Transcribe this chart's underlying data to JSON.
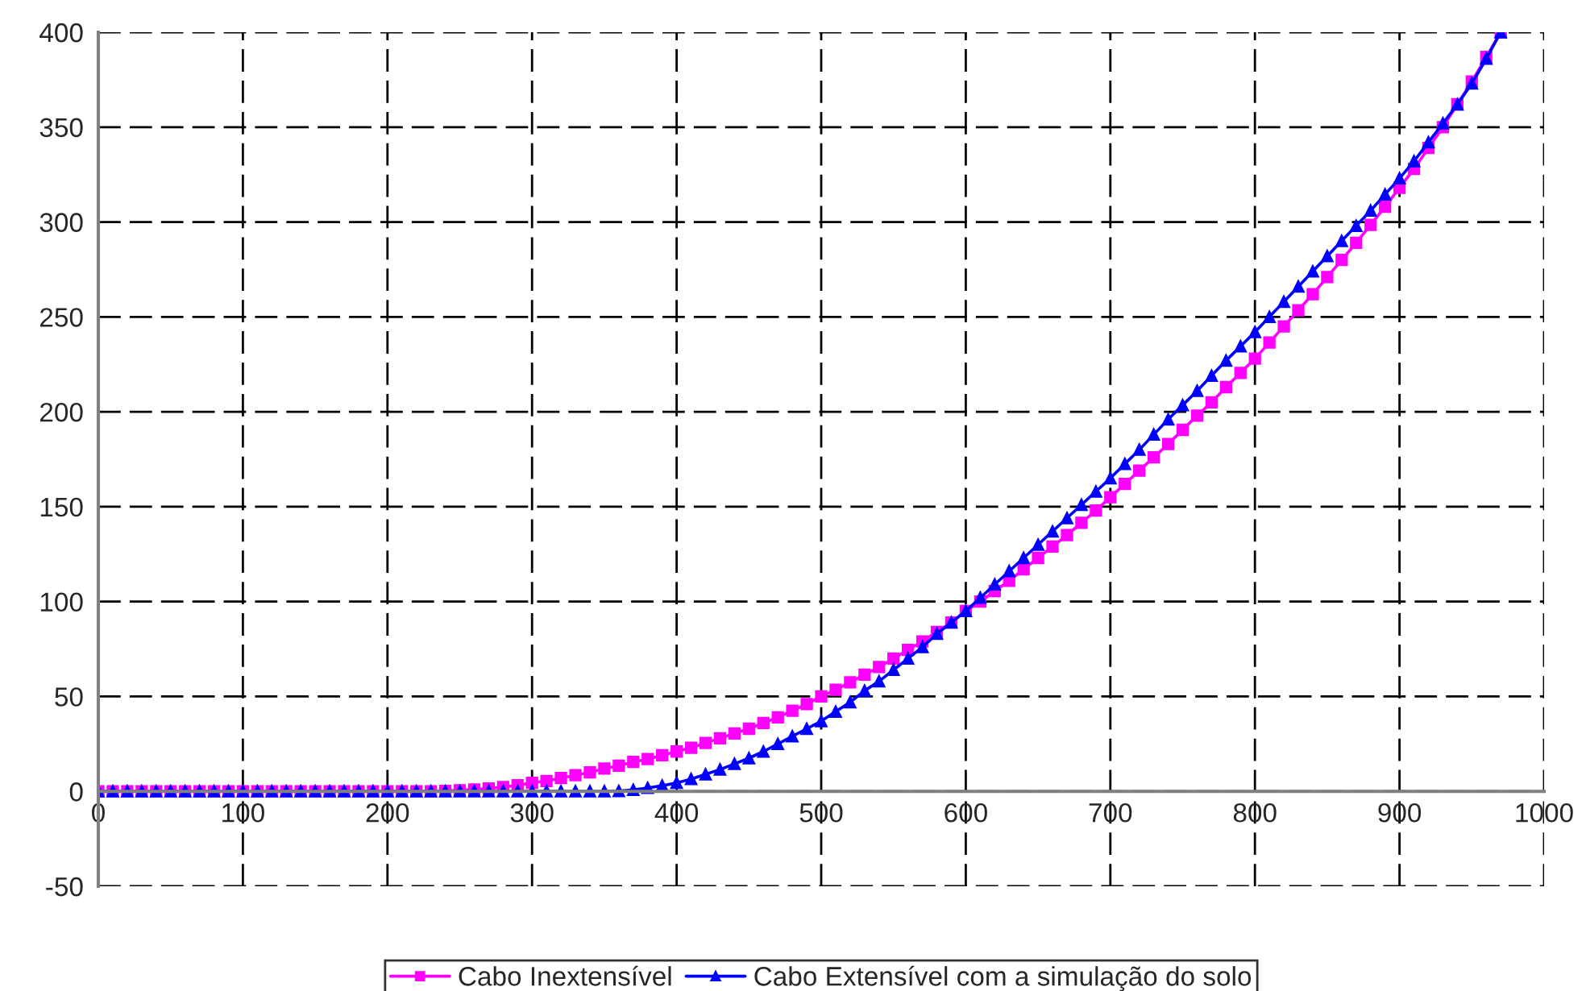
{
  "chart_data": {
    "type": "line",
    "x": [
      0,
      10,
      20,
      30,
      40,
      50,
      60,
      70,
      80,
      90,
      100,
      110,
      120,
      130,
      140,
      150,
      160,
      170,
      180,
      190,
      200,
      210,
      220,
      230,
      240,
      250,
      260,
      270,
      280,
      290,
      300,
      310,
      320,
      330,
      340,
      350,
      360,
      370,
      380,
      390,
      400,
      410,
      420,
      430,
      440,
      450,
      460,
      470,
      480,
      490,
      500,
      510,
      520,
      530,
      540,
      550,
      560,
      570,
      580,
      590,
      600,
      610,
      620,
      630,
      640,
      650,
      660,
      670,
      680,
      690,
      700,
      710,
      720,
      730,
      740,
      750,
      760,
      770,
      780,
      790,
      800,
      810,
      820,
      830,
      840,
      850,
      860,
      870,
      880,
      890,
      900,
      910,
      920,
      930,
      940,
      950,
      960,
      970
    ],
    "series": [
      {
        "name": "Cabo Inextensível",
        "color": "#ff00ff",
        "marker": "square",
        "values": [
          0,
          0,
          0,
          0,
          0,
          0,
          0,
          0,
          0,
          0,
          0,
          0,
          0,
          0,
          0,
          0,
          0,
          0,
          0,
          0,
          0,
          0,
          0,
          0,
          0.3,
          0.6,
          1,
          1.5,
          2.3,
          3.2,
          4.5,
          5.5,
          7,
          8.5,
          10,
          12,
          13.5,
          15.5,
          17,
          19,
          21,
          23,
          25.5,
          28,
          30.5,
          33,
          36,
          39,
          42.5,
          46,
          50,
          53.5,
          57.5,
          61.5,
          65.5,
          70,
          74.5,
          79,
          84,
          89,
          95,
          100,
          105.5,
          111,
          117,
          123,
          129,
          135,
          141.5,
          148,
          155,
          162,
          169,
          176,
          183,
          190.5,
          198,
          205,
          213,
          220.5,
          228,
          236.5,
          245,
          253.5,
          262,
          271,
          280,
          289,
          298.5,
          308,
          318,
          328,
          339,
          350,
          362,
          374,
          387,
          400
        ]
      },
      {
        "name": "Cabo Extensível com a simulação do solo",
        "color": "#0000ff",
        "marker": "triangle",
        "values": [
          0,
          0,
          0,
          0,
          0,
          0,
          0,
          0,
          0,
          0,
          0,
          0,
          0,
          0,
          0,
          0,
          0,
          0,
          0,
          0,
          0,
          0,
          0,
          0,
          0,
          0,
          0,
          0,
          0,
          0,
          0,
          0,
          0,
          0,
          0,
          0,
          0.2,
          0.8,
          1.8,
          3,
          4.5,
          6.5,
          9,
          11.5,
          14.5,
          17.5,
          21,
          25,
          29,
          33,
          37,
          42,
          47,
          53,
          58,
          64,
          70,
          76,
          83,
          89,
          95,
          102,
          109,
          116,
          123,
          130,
          137,
          144,
          151,
          158,
          165,
          172.5,
          180,
          188,
          196,
          203.5,
          211,
          219,
          227,
          234.5,
          242,
          250,
          258,
          266,
          274,
          282,
          290,
          298,
          306,
          314.5,
          323,
          332,
          342,
          352,
          362,
          373,
          386,
          400
        ]
      }
    ],
    "xlim": [
      0,
      1000
    ],
    "xticks": [
      0,
      100,
      200,
      300,
      400,
      500,
      600,
      700,
      800,
      900,
      1000
    ],
    "ylim": [
      -50,
      400
    ],
    "yticks": [
      -50,
      0,
      50,
      100,
      150,
      200,
      250,
      300,
      350,
      400
    ],
    "grid": true,
    "legend": "bottom",
    "line_style": "solid"
  }
}
